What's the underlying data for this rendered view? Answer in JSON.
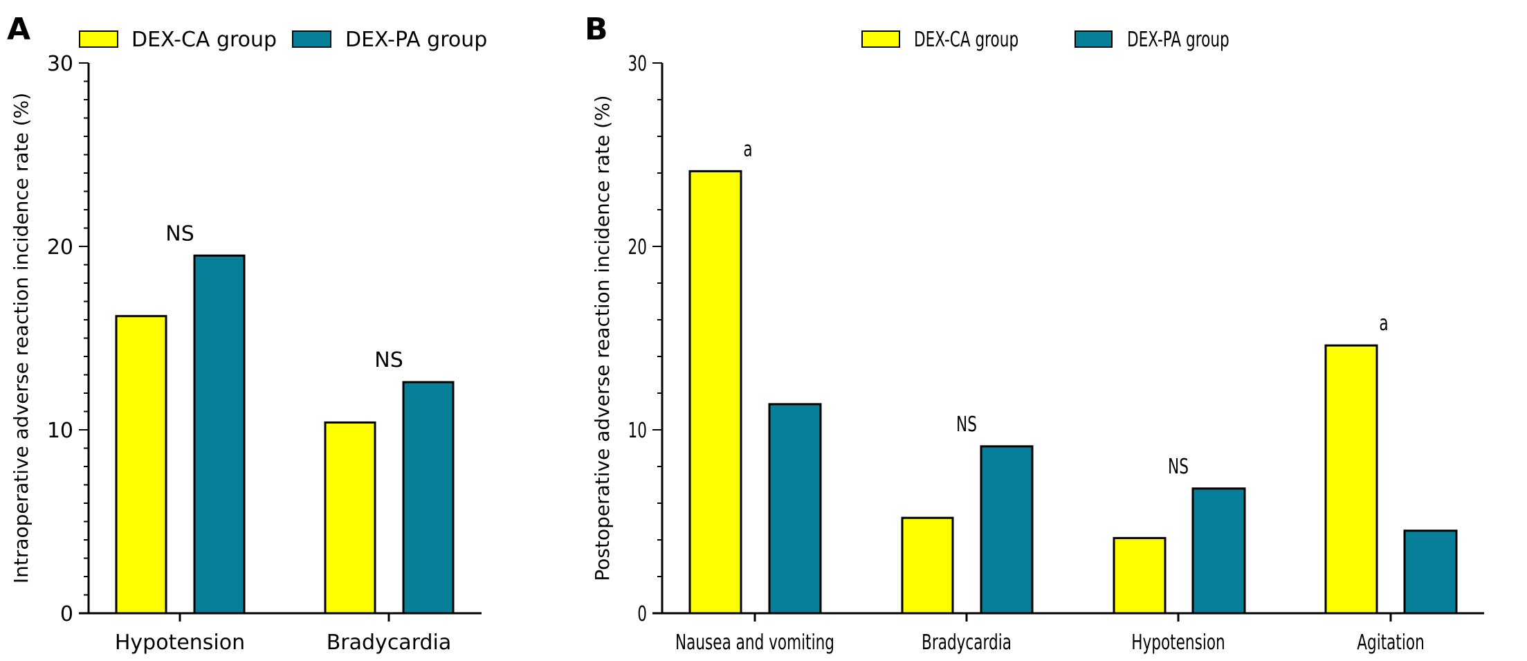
{
  "colors": {
    "DEX-CA group": "#ffff00",
    "DEX-PA group": "#087f99",
    "outline": "#000000"
  },
  "chart_data": [
    {
      "panel": "A",
      "type": "bar",
      "ylabel": "Intraoperative adverse reaction incidence rate (%)",
      "xlabel": "",
      "ylim": [
        0,
        30
      ],
      "yticks": [
        "0",
        "10",
        "20",
        "30"
      ],
      "grid": false,
      "legend_position": "top",
      "categories": [
        "Hypotension",
        "Bradycardia"
      ],
      "series": [
        {
          "name": "DEX-CA group",
          "values": [
            16.2,
            10.4
          ]
        },
        {
          "name": "DEX-PA group",
          "values": [
            19.5,
            12.6
          ]
        }
      ],
      "annotations": [
        "NS",
        "NS"
      ]
    },
    {
      "panel": "B",
      "type": "bar",
      "ylabel": "Postoperative adverse reaction incidence rate (%)",
      "xlabel": "",
      "ylim": [
        0,
        30
      ],
      "yticks": [
        "0",
        "10",
        "20",
        "30"
      ],
      "grid": false,
      "legend_position": "top",
      "categories": [
        "Nausea and vomiting",
        "Bradycardia",
        "Hypotension",
        "Agitation"
      ],
      "series": [
        {
          "name": "DEX-CA group",
          "values": [
            24.1,
            5.2,
            4.1,
            14.6
          ]
        },
        {
          "name": "DEX-PA group",
          "values": [
            11.4,
            9.1,
            6.8,
            4.5
          ]
        }
      ],
      "annotations": [
        "a",
        "NS",
        "NS",
        "a"
      ]
    }
  ]
}
